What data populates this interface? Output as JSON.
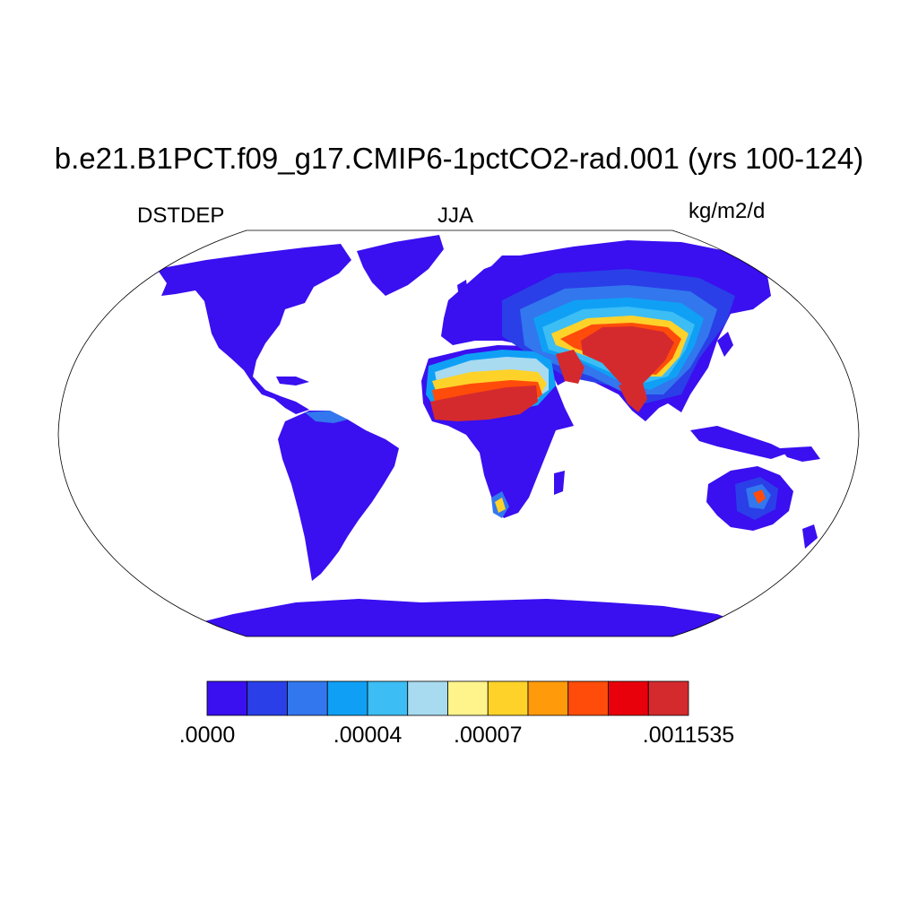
{
  "figure": {
    "title": "b.e21.B1PCT.f09_g17.CMIP6-1pctCO2-rad.001 (yrs 100-124)",
    "left_label": "DSTDEP",
    "center_label": "JJA",
    "right_label": "kg/m2/d",
    "projection": "Robinson"
  },
  "colorbar": {
    "colors": [
      "#3a0ff0",
      "#2a3fe8",
      "#3277ee",
      "#0fa0f5",
      "#3cbdf4",
      "#a8daf0",
      "#fff48c",
      "#ffd22a",
      "#ff9a0a",
      "#ff4c0a",
      "#e8000a",
      "#d42a2e"
    ],
    "labels": [
      {
        "text": ".0000",
        "boundary": 0
      },
      {
        "text": ".00004",
        "boundary": 4
      },
      {
        "text": ".00007",
        "boundary": 7
      },
      {
        "text": ".0011535",
        "boundary": 12
      }
    ]
  }
}
